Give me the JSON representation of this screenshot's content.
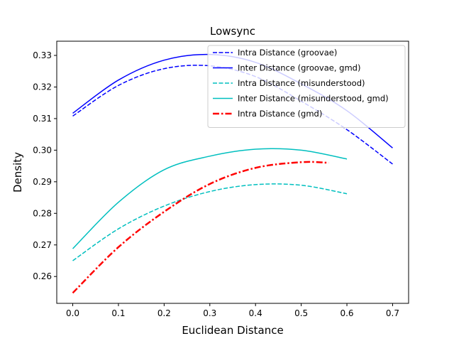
{
  "chart_data": {
    "type": "line",
    "title": "Lowsync",
    "xlabel": "Euclidean Distance",
    "ylabel": "Density",
    "xlim": [
      -0.035,
      0.735
    ],
    "ylim": [
      0.2515,
      0.3345
    ],
    "xticks": [
      0.0,
      0.1,
      0.2,
      0.3,
      0.4,
      0.5,
      0.6,
      0.7
    ],
    "xtick_labels": [
      "0.0",
      "0.1",
      "0.2",
      "0.3",
      "0.4",
      "0.5",
      "0.6",
      "0.7"
    ],
    "yticks": [
      0.26,
      0.27,
      0.28,
      0.29,
      0.3,
      0.31,
      0.32,
      0.33
    ],
    "ytick_labels": [
      "0.26",
      "0.27",
      "0.28",
      "0.29",
      "0.30",
      "0.31",
      "0.32",
      "0.33"
    ],
    "grid": false,
    "legend_position": "top-right",
    "series": [
      {
        "name": "Intra Distance (groovae)",
        "color": "#0000ff",
        "dash": "dashed",
        "width": 1.5,
        "x": [
          0.0,
          0.1,
          0.2,
          0.3,
          0.4,
          0.5,
          0.6,
          0.7
        ],
        "y": [
          0.3108,
          0.3205,
          0.3258,
          0.3267,
          0.3233,
          0.3155,
          0.3065,
          0.2956
        ]
      },
      {
        "name": "Inter Distance (groovae, gmd)",
        "color": "#0000ff",
        "dash": "solid",
        "width": 1.5,
        "x": [
          0.0,
          0.1,
          0.2,
          0.3,
          0.4,
          0.5,
          0.6,
          0.7
        ],
        "y": [
          0.3117,
          0.3222,
          0.3285,
          0.3303,
          0.3278,
          0.321,
          0.3125,
          0.3007
        ]
      },
      {
        "name": "Intra Distance (misunderstood)",
        "color": "#00bfbf",
        "dash": "dashed",
        "width": 1.5,
        "x": [
          0.0,
          0.1,
          0.2,
          0.3,
          0.4,
          0.5,
          0.6
        ],
        "y": [
          0.265,
          0.2751,
          0.2823,
          0.2869,
          0.2891,
          0.2889,
          0.2862
        ]
      },
      {
        "name": "Inter Distance (misunderstood, gmd)",
        "color": "#00bfbf",
        "dash": "solid",
        "width": 1.5,
        "x": [
          0.0,
          0.1,
          0.2,
          0.3,
          0.4,
          0.5,
          0.6
        ],
        "y": [
          0.2688,
          0.2835,
          0.2938,
          0.2981,
          0.3003,
          0.3,
          0.2972
        ]
      },
      {
        "name": "Intra Distance (gmd)",
        "color": "#ff0000",
        "dash": "dashdot",
        "width": 2.5,
        "x": [
          0.0,
          0.1,
          0.2,
          0.3,
          0.4,
          0.5,
          0.56
        ],
        "y": [
          0.2548,
          0.2693,
          0.2805,
          0.2893,
          0.2944,
          0.2962,
          0.296
        ]
      }
    ]
  }
}
